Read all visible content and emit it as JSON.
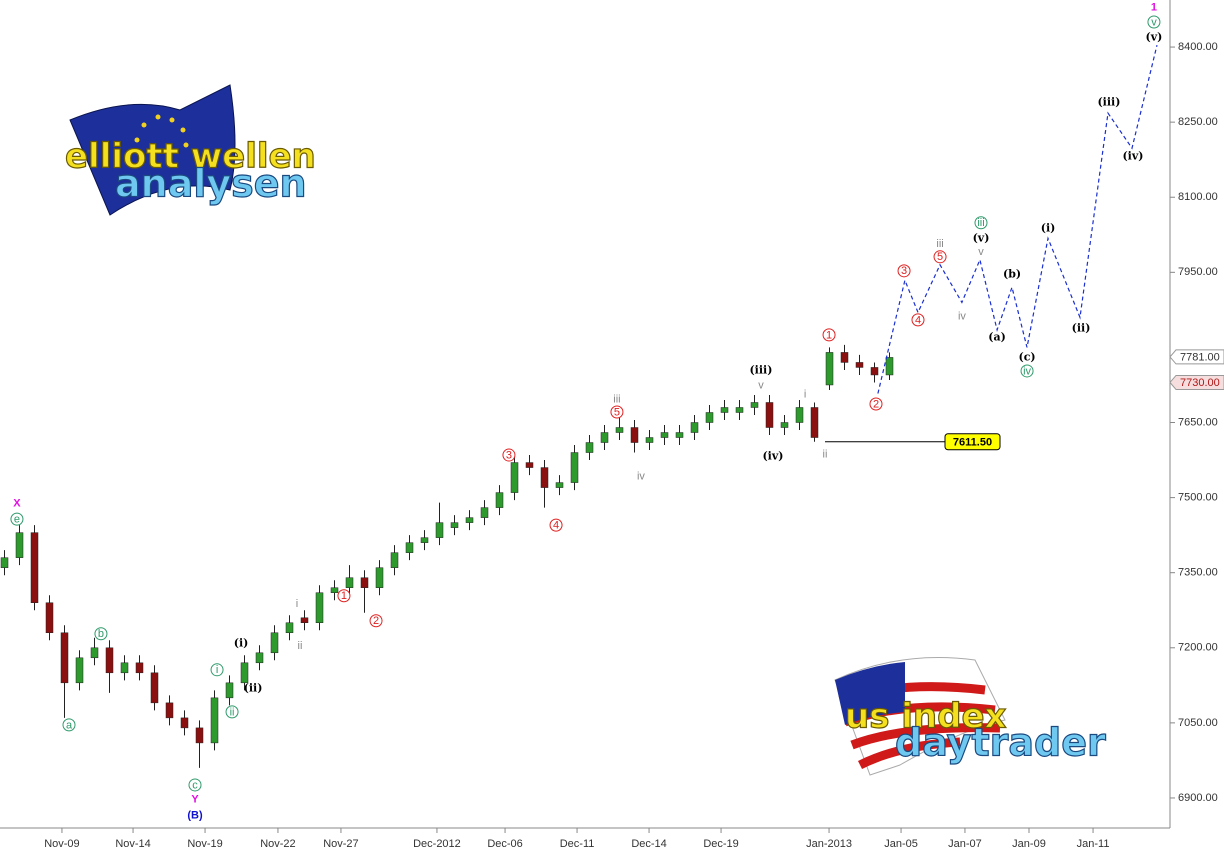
{
  "chart_data": {
    "type": "candlestick",
    "x": [
      0,
      1,
      2,
      3,
      4,
      5,
      6,
      7,
      8,
      9,
      10,
      11,
      12,
      13,
      14,
      15,
      16,
      17,
      18,
      19,
      20,
      21,
      22,
      23,
      24,
      25,
      26,
      27,
      28,
      29,
      30,
      31,
      32,
      33,
      34,
      35,
      36,
      37,
      38,
      39,
      40,
      41,
      42,
      43,
      44,
      45,
      46,
      47,
      48,
      49,
      50,
      51,
      52,
      53,
      54,
      55,
      56,
      57,
      58,
      59
    ],
    "open": [
      7360,
      7380,
      7430,
      7290,
      7230,
      7130,
      7180,
      7200,
      7150,
      7170,
      7150,
      7090,
      7060,
      7040,
      7010,
      7100,
      7130,
      7170,
      7190,
      7230,
      7260,
      7250,
      7310,
      7320,
      7340,
      7320,
      7360,
      7390,
      7410,
      7420,
      7440,
      7450,
      7460,
      7480,
      7510,
      7570,
      7560,
      7520,
      7530,
      7590,
      7610,
      7630,
      7640,
      7610,
      7620,
      7620,
      7630,
      7650,
      7670,
      7670,
      7680,
      7690,
      7640,
      7650,
      7680,
      7725,
      7790,
      7770,
      7760,
      7745
    ],
    "high": [
      7395,
      7445,
      7445,
      7305,
      7245,
      7195,
      7220,
      7215,
      7185,
      7185,
      7165,
      7105,
      7075,
      7055,
      7115,
      7145,
      7185,
      7205,
      7245,
      7265,
      7275,
      7325,
      7335,
      7365,
      7355,
      7375,
      7405,
      7425,
      7435,
      7490,
      7465,
      7475,
      7495,
      7525,
      7585,
      7585,
      7575,
      7545,
      7605,
      7625,
      7645,
      7660,
      7655,
      7635,
      7645,
      7645,
      7665,
      7685,
      7695,
      7695,
      7705,
      7705,
      7665,
      7695,
      7690,
      7800,
      7805,
      7785,
      7770,
      7790
    ],
    "low": [
      7345,
      7365,
      7275,
      7215,
      7060,
      7115,
      7165,
      7110,
      7135,
      7135,
      7075,
      7045,
      7025,
      6960,
      6995,
      7085,
      7115,
      7155,
      7175,
      7215,
      7235,
      7235,
      7295,
      7305,
      7270,
      7305,
      7345,
      7375,
      7395,
      7405,
      7425,
      7435,
      7445,
      7465,
      7495,
      7545,
      7480,
      7505,
      7515,
      7575,
      7595,
      7615,
      7590,
      7595,
      7605,
      7605,
      7615,
      7635,
      7655,
      7655,
      7665,
      7625,
      7625,
      7635,
      7611.5,
      7715,
      7755,
      7745,
      7730,
      7735
    ],
    "close": [
      7380,
      7430,
      7290,
      7230,
      7130,
      7180,
      7200,
      7150,
      7170,
      7150,
      7090,
      7060,
      7040,
      7010,
      7100,
      7130,
      7170,
      7190,
      7230,
      7250,
      7250,
      7310,
      7320,
      7340,
      7320,
      7360,
      7390,
      7410,
      7420,
      7450,
      7450,
      7460,
      7480,
      7510,
      7570,
      7560,
      7520,
      7530,
      7590,
      7610,
      7630,
      7640,
      7610,
      7620,
      7630,
      7630,
      7650,
      7670,
      7680,
      7680,
      7690,
      7640,
      7650,
      7680,
      7620,
      7790,
      7770,
      7760,
      7745,
      7780
    ],
    "up_color": "#2e9a2e",
    "down_color": "#8b1010",
    "xlim": [
      -0.3,
      77.7
    ],
    "xticks": [
      {
        "value": 3.83,
        "label": "Nov-09"
      },
      {
        "value": 8.57,
        "label": "Nov-14"
      },
      {
        "value": 13.37,
        "label": "Nov-19"
      },
      {
        "value": 18.23,
        "label": "Nov-22"
      },
      {
        "value": 22.43,
        "label": "Nov-27"
      },
      {
        "value": 28.83,
        "label": "Dec-2012"
      },
      {
        "value": 33.37,
        "label": "Dec-06"
      },
      {
        "value": 38.17,
        "label": "Dec-11"
      },
      {
        "value": 42.97,
        "label": "Dec-14"
      },
      {
        "value": 47.77,
        "label": "Dec-19"
      },
      {
        "value": 54.97,
        "label": "Jan-2013"
      },
      {
        "value": 59.77,
        "label": "Jan-05"
      },
      {
        "value": 64.03,
        "label": "Jan-07"
      },
      {
        "value": 68.3,
        "label": "Jan-09"
      },
      {
        "value": 72.57,
        "label": "Jan-11"
      }
    ],
    "ylim": [
      6840,
      8494
    ],
    "yticks": [
      {
        "value": 6900,
        "label": "6900.00"
      },
      {
        "value": 7050,
        "label": "7050.00"
      },
      {
        "value": 7200,
        "label": "7200.00"
      },
      {
        "value": 7350,
        "label": "7350.00"
      },
      {
        "value": 7500,
        "label": "7500.00"
      },
      {
        "value": 7650,
        "label": "7650.00"
      },
      {
        "value": 7950,
        "label": "7950.00"
      },
      {
        "value": 8100,
        "label": "8100.00"
      },
      {
        "value": 8250,
        "label": "8250.00"
      },
      {
        "value": 8400,
        "label": "8400.00"
      }
    ],
    "grid": false,
    "projection": {
      "color": "#1a2fd0",
      "x": [
        58.23,
        60.03,
        60.9,
        62.37,
        63.83,
        65.03,
        66.17,
        67.17,
        68.17,
        69.57,
        71.7,
        73.57,
        75.17,
        76.83
      ],
      "y": [
        7708,
        7934,
        7870,
        7965,
        7890,
        7975,
        7835,
        7920,
        7800,
        8018,
        7860,
        8268,
        8198,
        8404
      ]
    },
    "level": {
      "value": 7611.5,
      "label": "7611.50",
      "x": [
        54.7,
        62.7
      ],
      "color": "#000000",
      "box_color": "#ffff00"
    },
    "price_tags": [
      {
        "value": 7781,
        "label": "7781.00",
        "color": "#333333",
        "box_color": "#ffffff"
      },
      {
        "value": 7730,
        "label": "7730.00",
        "color": "#b01818",
        "box_color": "#f6dede"
      }
    ],
    "annotations": [
      {
        "text": "X",
        "x": 0.83,
        "y": 7489,
        "color": "#e010e0",
        "circled": false,
        "bold": true
      },
      {
        "text": "e",
        "x": 0.83,
        "y": 7457,
        "color": "#2e9a6a",
        "circled": true,
        "bold": false
      },
      {
        "text": "a",
        "x": 4.3,
        "y": 7046,
        "color": "#2e9a6a",
        "circled": true,
        "bold": false
      },
      {
        "text": "b",
        "x": 6.43,
        "y": 7228,
        "color": "#2e9a6a",
        "circled": true,
        "bold": false
      },
      {
        "text": "c",
        "x": 12.7,
        "y": 6926,
        "color": "#2e9a6a",
        "circled": true,
        "bold": false
      },
      {
        "text": "Y",
        "x": 12.7,
        "y": 6898,
        "color": "#e010e0",
        "circled": false,
        "bold": true
      },
      {
        "text": "(B)",
        "x": 12.7,
        "y": 6866,
        "color": "#1010d0",
        "circled": false,
        "bold": true
      },
      {
        "text": "i",
        "x": 14.17,
        "y": 7156,
        "color": "#2e9a6a",
        "circled": true,
        "bold": false
      },
      {
        "text": "ii",
        "x": 15.17,
        "y": 7072,
        "color": "#2e9a6a",
        "circled": true,
        "bold": false
      },
      {
        "text": "(i)",
        "x": 15.77,
        "y": 7210,
        "color": "#000000",
        "circled": false,
        "bold": true
      },
      {
        "text": "(ii)",
        "x": 16.57,
        "y": 7120,
        "color": "#000000",
        "circled": false,
        "bold": true
      },
      {
        "text": "i",
        "x": 19.5,
        "y": 7288,
        "color": "#888888",
        "circled": false,
        "bold": false
      },
      {
        "text": "ii",
        "x": 19.7,
        "y": 7204,
        "color": "#888888",
        "circled": false,
        "bold": false
      },
      {
        "text": "1",
        "x": 22.63,
        "y": 7304,
        "color": "#e02020",
        "circled": true,
        "bold": false
      },
      {
        "text": "2",
        "x": 24.77,
        "y": 7254,
        "color": "#e02020",
        "circled": true,
        "bold": false
      },
      {
        "text": "3",
        "x": 33.63,
        "y": 7585,
        "color": "#e02020",
        "circled": true,
        "bold": false
      },
      {
        "text": "4",
        "x": 36.77,
        "y": 7445,
        "color": "#e02020",
        "circled": true,
        "bold": false
      },
      {
        "text": "iii",
        "x": 40.83,
        "y": 7697,
        "color": "#888888",
        "circled": false,
        "bold": false
      },
      {
        "text": "5",
        "x": 40.83,
        "y": 7671,
        "color": "#e02020",
        "circled": true,
        "bold": false
      },
      {
        "text": "iv",
        "x": 42.43,
        "y": 7543,
        "color": "#888888",
        "circled": false,
        "bold": false
      },
      {
        "text": "(iii)",
        "x": 50.43,
        "y": 7755,
        "color": "#000000",
        "circled": false,
        "bold": true
      },
      {
        "text": "v",
        "x": 50.43,
        "y": 7725,
        "color": "#888888",
        "circled": false,
        "bold": false
      },
      {
        "text": "(iv)",
        "x": 51.23,
        "y": 7583,
        "color": "#000000",
        "circled": false,
        "bold": true
      },
      {
        "text": "i",
        "x": 53.37,
        "y": 7707,
        "color": "#888888",
        "circled": false,
        "bold": false
      },
      {
        "text": "ii",
        "x": 54.7,
        "y": 7587,
        "color": "#888888",
        "circled": false,
        "bold": false
      },
      {
        "text": "1",
        "x": 54.97,
        "y": 7825,
        "color": "#e02020",
        "circled": true,
        "bold": false
      },
      {
        "text": "2",
        "x": 58.1,
        "y": 7687,
        "color": "#e02020",
        "circled": true,
        "bold": false
      },
      {
        "text": "3",
        "x": 59.97,
        "y": 7953,
        "color": "#e02020",
        "circled": true,
        "bold": false
      },
      {
        "text": "4",
        "x": 60.9,
        "y": 7855,
        "color": "#e02020",
        "circled": true,
        "bold": false
      },
      {
        "text": "iii",
        "x": 62.37,
        "y": 8007,
        "color": "#888888",
        "circled": false,
        "bold": false
      },
      {
        "text": "5",
        "x": 62.37,
        "y": 7981,
        "color": "#e02020",
        "circled": true,
        "bold": false
      },
      {
        "text": "iv",
        "x": 63.83,
        "y": 7863,
        "color": "#888888",
        "circled": false,
        "bold": false
      },
      {
        "text": "iii",
        "x": 65.1,
        "y": 8049,
        "color": "#2e9a6a",
        "circled": true,
        "bold": false
      },
      {
        "text": "(v)",
        "x": 65.1,
        "y": 8019,
        "color": "#000000",
        "circled": false,
        "bold": true
      },
      {
        "text": "v",
        "x": 65.1,
        "y": 7991,
        "color": "#888888",
        "circled": false,
        "bold": false
      },
      {
        "text": "(a)",
        "x": 66.17,
        "y": 7821,
        "color": "#000000",
        "circled": false,
        "bold": true
      },
      {
        "text": "(b)",
        "x": 67.17,
        "y": 7947,
        "color": "#000000",
        "circled": false,
        "bold": true
      },
      {
        "text": "(c)",
        "x": 68.17,
        "y": 7781,
        "color": "#000000",
        "circled": false,
        "bold": true
      },
      {
        "text": "iv",
        "x": 68.17,
        "y": 7753,
        "color": "#2e9a6a",
        "circled": true,
        "bold": false
      },
      {
        "text": "(i)",
        "x": 69.57,
        "y": 8039,
        "color": "#000000",
        "circled": false,
        "bold": true
      },
      {
        "text": "(ii)",
        "x": 71.77,
        "y": 7839,
        "color": "#000000",
        "circled": false,
        "bold": true
      },
      {
        "text": "(iii)",
        "x": 73.63,
        "y": 8290,
        "color": "#000000",
        "circled": false,
        "bold": true
      },
      {
        "text": "(iv)",
        "x": 75.23,
        "y": 8182,
        "color": "#000000",
        "circled": false,
        "bold": true
      },
      {
        "text": "1",
        "x": 76.63,
        "y": 8480,
        "color": "#e010e0",
        "circled": false,
        "bold": true
      },
      {
        "text": "v",
        "x": 76.63,
        "y": 8450,
        "color": "#2e9a6a",
        "circled": true,
        "bold": false
      },
      {
        "text": "(v)",
        "x": 76.63,
        "y": 8420,
        "color": "#000000",
        "circled": false,
        "bold": true
      }
    ]
  },
  "logos": [
    {
      "line1": "elliott wellen",
      "line2": "analysen"
    },
    {
      "line1": "us index",
      "line2": "daytrader"
    }
  ]
}
